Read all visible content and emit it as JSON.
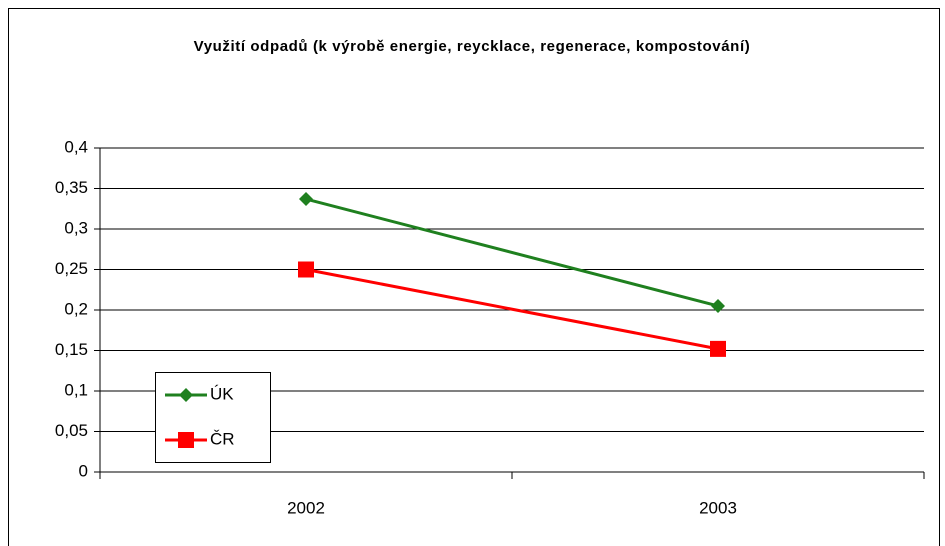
{
  "chart_data": {
    "type": "line",
    "title": "Využití odpadů (k výrobě energie, reycklace, regenerace, kompostování)",
    "categories": [
      "2002",
      "2003"
    ],
    "series": [
      {
        "name": "ÚK",
        "color": "#1f801f",
        "marker": "diamond",
        "values": [
          0.337,
          0.205
        ]
      },
      {
        "name": "ČR",
        "color": "#ff0000",
        "marker": "square",
        "values": [
          0.25,
          0.152
        ]
      }
    ],
    "ylim": [
      0,
      0.4
    ],
    "yticks": [
      0,
      {
        "value": 0.05,
        "label": "0,05"
      },
      {
        "value": 0.1,
        "label": "0,1"
      },
      {
        "value": 0.15,
        "label": "0,15"
      },
      {
        "value": 0.2,
        "label": "0,2"
      },
      {
        "value": 0.25,
        "label": "0,25"
      },
      {
        "value": 0.3,
        "label": "0,3"
      },
      {
        "value": 0.35,
        "label": "0,35"
      },
      {
        "value": 0.4,
        "label": "0,4"
      }
    ],
    "grid": true,
    "legend": "bottom-left"
  }
}
